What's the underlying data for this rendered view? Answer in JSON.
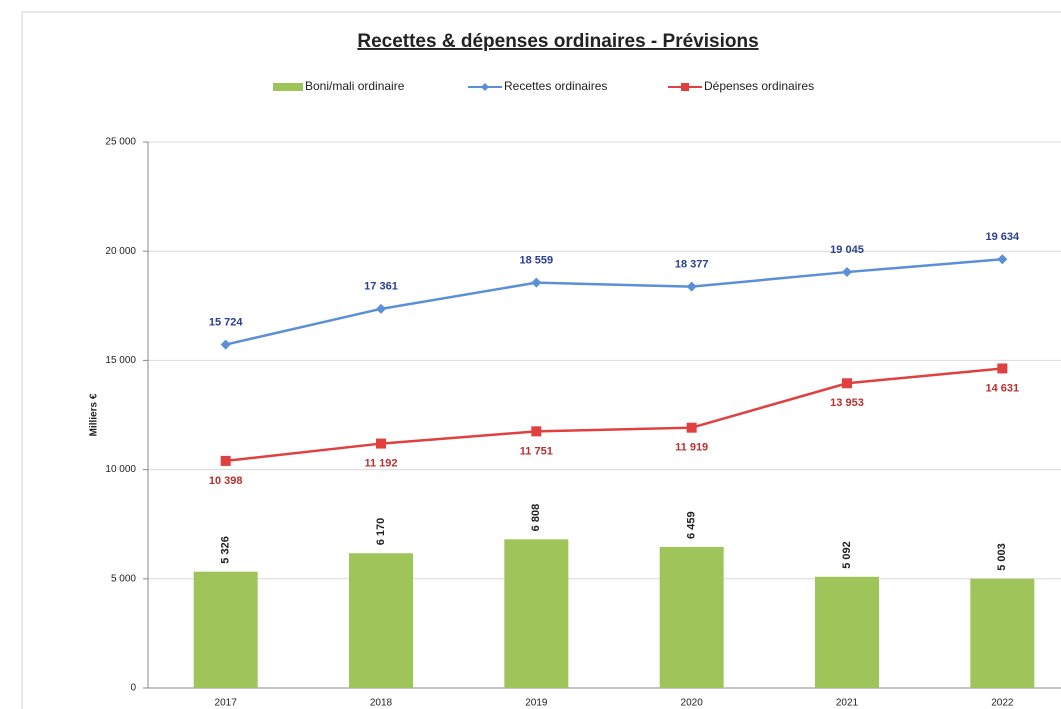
{
  "chart_data": {
    "type": "bar-line",
    "title": "Recettes & dépenses ordinaires - Prévisions",
    "ylabel": "Milliers €",
    "categories": [
      "2017",
      "2018",
      "2019",
      "2020",
      "2021",
      "2022"
    ],
    "series": [
      {
        "name": "Boni/mali ordinaire",
        "type": "bar",
        "color": "#9fc55a",
        "values": [
          5326,
          6170,
          6808,
          6459,
          5092,
          5003
        ],
        "value_labels": [
          "5 326",
          "6 170",
          "6 808",
          "6 459",
          "5 092",
          "5 003"
        ]
      },
      {
        "name": "Recettes ordinaires",
        "type": "line",
        "color": "#5b8fd6",
        "values": [
          15724,
          17361,
          18559,
          18377,
          19045,
          19634
        ],
        "value_labels": [
          "15 724",
          "17 361",
          "18 559",
          "18 377",
          "19 045",
          "19 634"
        ]
      },
      {
        "name": "Dépenses ordinaires",
        "type": "line",
        "color": "#e0403f",
        "values": [
          10398,
          11192,
          11751,
          11919,
          13953,
          14631
        ],
        "value_labels": [
          "10 398",
          "11 192",
          "11 751",
          "11 919",
          "13 953",
          "14 631"
        ]
      }
    ],
    "ylim": [
      0,
      25000
    ],
    "yticks": [
      0,
      {
        "value": 5000,
        "label": "5 000"
      },
      {
        "value": 10000,
        "label": "10 000"
      },
      {
        "value": 15000,
        "label": "15 000"
      },
      {
        "value": 20000,
        "label": "20 000"
      },
      {
        "value": 25000,
        "label": "25 000"
      }
    ],
    "grid": true,
    "legend": "top"
  }
}
